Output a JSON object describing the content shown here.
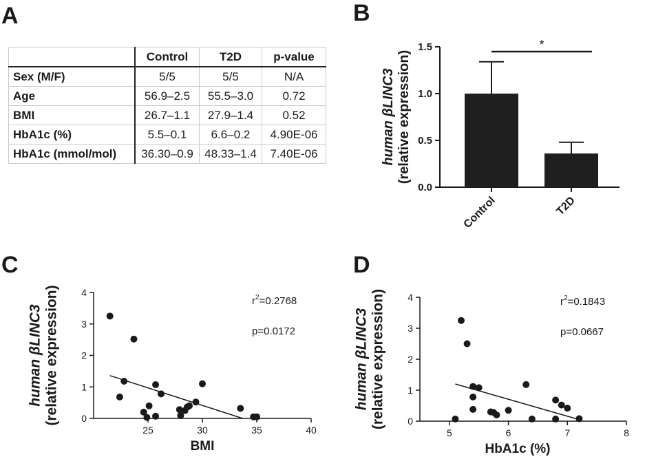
{
  "panels": {
    "a": "A",
    "b": "B",
    "c": "C",
    "d": "D"
  },
  "table": {
    "headers": [
      "",
      "Control",
      "T2D",
      "p-value"
    ],
    "rows": [
      {
        "label": "Sex (M/F)",
        "control": "5/5",
        "t2d": "5/5",
        "p": "N/A"
      },
      {
        "label": "Age",
        "control": "56.9–2.5",
        "t2d": "55.5–3.0",
        "p": "0.72"
      },
      {
        "label": "BMI",
        "control": "26.7–1.1",
        "t2d": "27.9–1.4",
        "p": "0.52"
      },
      {
        "label": "HbA1c (%)",
        "control": "5.5–0.1",
        "t2d": "6.6–0.2",
        "p": "4.90E-06"
      },
      {
        "label": "HbA1c (mmol/mol)",
        "control": "36.30–0.9",
        "t2d": "48.33–1.4",
        "p": "7.40E-06"
      }
    ]
  },
  "ylabel_line1": "human βLINC3",
  "ylabel_line2": "(relative expression)",
  "chart_data": [
    {
      "id": "B",
      "type": "bar",
      "categories": [
        "Control",
        "T2D"
      ],
      "values": [
        1.0,
        0.36
      ],
      "errors": [
        0.34,
        0.12
      ],
      "ylim": [
        0,
        1.5
      ],
      "yticks": [
        "0.0",
        "0.5",
        "1.0",
        "1.5"
      ],
      "ytick_values": [
        0,
        0.5,
        1.0,
        1.5
      ],
      "significance": "*",
      "bar_color": "#1f1f1f",
      "xlabel": "",
      "ylabel": "human βLINC3 (relative expression)"
    },
    {
      "id": "C",
      "type": "scatter",
      "xlabel": "BMI",
      "ylabel": "human βLINC3 (relative expression)",
      "xlim": [
        20,
        40
      ],
      "ylim": [
        0,
        4
      ],
      "xticks": [
        "25",
        "30",
        "35",
        "40"
      ],
      "xtick_values": [
        25,
        30,
        35,
        40
      ],
      "yticks": [
        "0",
        "1",
        "2",
        "3",
        "4"
      ],
      "ytick_values": [
        0,
        1,
        2,
        3,
        4
      ],
      "points": [
        [
          21.5,
          3.25
        ],
        [
          23.7,
          2.52
        ],
        [
          22.8,
          1.18
        ],
        [
          22.4,
          0.68
        ],
        [
          25.7,
          1.07
        ],
        [
          26.2,
          0.78
        ],
        [
          24.6,
          0.2
        ],
        [
          24.9,
          0.03
        ],
        [
          25.1,
          0.4
        ],
        [
          25.7,
          0.07
        ],
        [
          27.9,
          0.28
        ],
        [
          28.0,
          0.09
        ],
        [
          28.4,
          0.25
        ],
        [
          28.6,
          0.36
        ],
        [
          28.8,
          0.4
        ],
        [
          29.4,
          0.52
        ],
        [
          30.0,
          1.1
        ],
        [
          33.5,
          0.32
        ],
        [
          34.7,
          0.05
        ],
        [
          35.0,
          0.05
        ]
      ],
      "fit_line": [
        [
          21.5,
          1.36
        ],
        [
          33.7,
          0.0
        ]
      ],
      "r2_label": "r",
      "r2_sup": "2",
      "r2_value": "=0.2768",
      "p_label": "p=0.0172"
    },
    {
      "id": "D",
      "type": "scatter",
      "xlabel": "HbA1c (%)",
      "ylabel": "human βLINC3 (relative expression)",
      "xlim": [
        4.5,
        8
      ],
      "ylim": [
        0,
        4
      ],
      "xticks": [
        "5",
        "6",
        "7",
        "8"
      ],
      "xtick_values": [
        5,
        6,
        7,
        8
      ],
      "yticks": [
        "0",
        "1",
        "2",
        "3",
        "4"
      ],
      "ytick_values": [
        0,
        1,
        2,
        3,
        4
      ],
      "points": [
        [
          5.2,
          3.25
        ],
        [
          5.3,
          2.5
        ],
        [
          5.4,
          1.12
        ],
        [
          5.5,
          1.08
        ],
        [
          5.4,
          0.78
        ],
        [
          5.4,
          0.38
        ],
        [
          5.1,
          0.07
        ],
        [
          5.7,
          0.3
        ],
        [
          5.75,
          0.28
        ],
        [
          5.8,
          0.2
        ],
        [
          6.0,
          0.35
        ],
        [
          6.3,
          1.18
        ],
        [
          6.4,
          0.07
        ],
        [
          6.8,
          0.68
        ],
        [
          6.9,
          0.52
        ],
        [
          7.0,
          0.42
        ],
        [
          6.8,
          0.07
        ],
        [
          7.2,
          0.08
        ]
      ],
      "fit_line": [
        [
          5.1,
          1.2
        ],
        [
          7.2,
          0.05
        ]
      ],
      "r2_label": "r",
      "r2_sup": "2",
      "r2_value": "=0.1843",
      "p_label": "p=0.0667"
    }
  ]
}
